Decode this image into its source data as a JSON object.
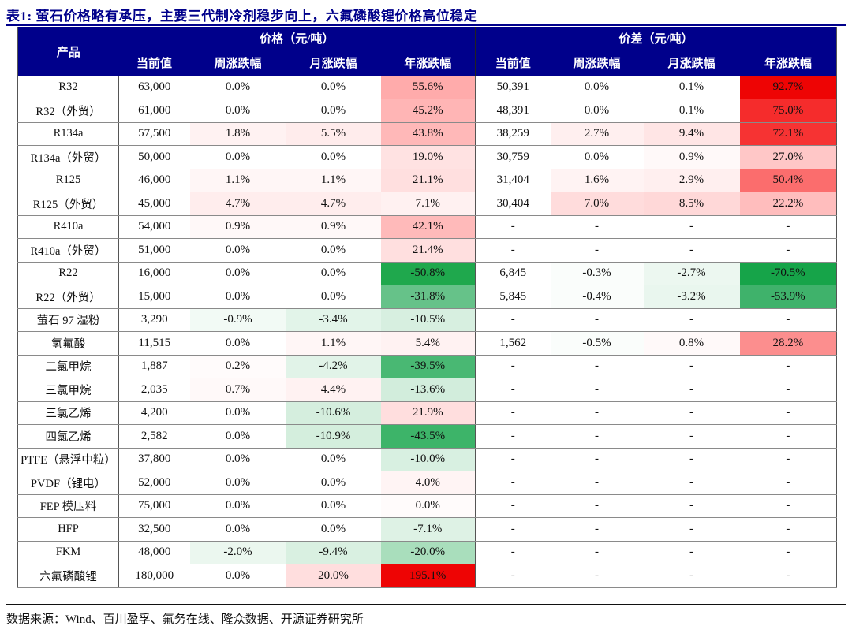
{
  "title": "表1:  萤石价格略有承压，主要三代制冷剂稳步向上，六氟磷酸锂价格高位稳定",
  "source": "数据来源：Wind、百川盈孚、氟务在线、隆众数据、开源证券研究所",
  "colors": {
    "header_bg": "#00008B",
    "title_color": "#00008B",
    "max_positive_red": "#EE0404",
    "max_negative_green": "#1FA84D"
  },
  "table": {
    "product_header": "产品",
    "groups": [
      {
        "label": "价格（元/吨）"
      },
      {
        "label": "价差（元/吨）"
      }
    ],
    "sub_headers": [
      "当前值",
      "周涨跌幅",
      "月涨跌幅",
      "年涨跌幅"
    ],
    "rows": [
      {
        "product": "R32",
        "price": [
          {
            "v": "63,000"
          },
          {
            "v": "0.0%"
          },
          {
            "v": "0.0%"
          },
          {
            "v": "55.6%",
            "bg": "#FFABAB"
          }
        ],
        "spread": [
          {
            "v": "50,391"
          },
          {
            "v": "0.0%"
          },
          {
            "v": "0.1%"
          },
          {
            "v": "92.7%",
            "bg": "#EE0404"
          }
        ]
      },
      {
        "product": "R32（外贸）",
        "price": [
          {
            "v": "61,000"
          },
          {
            "v": "0.0%"
          },
          {
            "v": "0.0%"
          },
          {
            "v": "45.2%",
            "bg": "#FFB5B5"
          }
        ],
        "spread": [
          {
            "v": "48,391"
          },
          {
            "v": "0.0%"
          },
          {
            "v": "0.1%"
          },
          {
            "v": "75.0%",
            "bg": "#F52C2C"
          }
        ]
      },
      {
        "product": "R134a",
        "price": [
          {
            "v": "57,500"
          },
          {
            "v": "1.8%",
            "bg": "#FFF2F2"
          },
          {
            "v": "5.5%",
            "bg": "#FFECEC"
          },
          {
            "v": "43.8%",
            "bg": "#FFB8B8"
          }
        ],
        "spread": [
          {
            "v": "38,259"
          },
          {
            "v": "2.7%",
            "bg": "#FFEFEF"
          },
          {
            "v": "9.4%",
            "bg": "#FFE5E5"
          },
          {
            "v": "72.1%",
            "bg": "#F63333"
          }
        ]
      },
      {
        "product": "R134a（外贸）",
        "price": [
          {
            "v": "50,000"
          },
          {
            "v": "0.0%"
          },
          {
            "v": "0.0%"
          },
          {
            "v": "19.0%",
            "bg": "#FFE2E2"
          }
        ],
        "spread": [
          {
            "v": "30,759"
          },
          {
            "v": "0.0%"
          },
          {
            "v": "0.9%",
            "bg": "#FFF9F9"
          },
          {
            "v": "27.0%",
            "bg": "#FFC7C7"
          }
        ]
      },
      {
        "product": "R125",
        "price": [
          {
            "v": "46,000"
          },
          {
            "v": "1.1%",
            "bg": "#FFF6F6"
          },
          {
            "v": "1.1%",
            "bg": "#FFF6F6"
          },
          {
            "v": "21.1%",
            "bg": "#FFDFDF"
          }
        ],
        "spread": [
          {
            "v": "31,404"
          },
          {
            "v": "1.6%",
            "bg": "#FFF3F3"
          },
          {
            "v": "2.9%",
            "bg": "#FFEFEF"
          },
          {
            "v": "50.4%",
            "bg": "#FB6D6D"
          }
        ]
      },
      {
        "product": "R125（外贸）",
        "price": [
          {
            "v": "45,000"
          },
          {
            "v": "4.7%",
            "bg": "#FFEDED"
          },
          {
            "v": "4.7%",
            "bg": "#FFEDED"
          },
          {
            "v": "7.1%",
            "bg": "#FFF1F1"
          }
        ],
        "spread": [
          {
            "v": "30,404"
          },
          {
            "v": "7.0%",
            "bg": "#FFDCDC"
          },
          {
            "v": "8.5%",
            "bg": "#FFD8D8"
          },
          {
            "v": "22.2%",
            "bg": "#FFBDBD"
          }
        ]
      },
      {
        "product": "R410a",
        "price": [
          {
            "v": "54,000"
          },
          {
            "v": "0.9%",
            "bg": "#FFF8F8"
          },
          {
            "v": "0.9%",
            "bg": "#FFF8F8"
          },
          {
            "v": "42.1%",
            "bg": "#FFBABA"
          }
        ],
        "spread": [
          {
            "v": "-"
          },
          {
            "v": "-"
          },
          {
            "v": "-"
          },
          {
            "v": "-"
          }
        ]
      },
      {
        "product": "R410a（外贸）",
        "price": [
          {
            "v": "51,000"
          },
          {
            "v": "0.0%"
          },
          {
            "v": "0.0%"
          },
          {
            "v": "21.4%",
            "bg": "#FFDFDF"
          }
        ],
        "spread": [
          {
            "v": "-"
          },
          {
            "v": "-"
          },
          {
            "v": "-"
          },
          {
            "v": "-"
          }
        ]
      },
      {
        "product": "R22",
        "price": [
          {
            "v": "16,000"
          },
          {
            "v": "0.0%"
          },
          {
            "v": "0.0%"
          },
          {
            "v": "-50.8%",
            "bg": "#1FA84D"
          }
        ],
        "spread": [
          {
            "v": "6,845"
          },
          {
            "v": "-0.3%",
            "bg": "#FAFDFB"
          },
          {
            "v": "-2.7%",
            "bg": "#ECF7F0"
          },
          {
            "v": "-70.5%",
            "bg": "#16A449"
          }
        ]
      },
      {
        "product": "R22（外贸）",
        "price": [
          {
            "v": "15,000"
          },
          {
            "v": "0.0%"
          },
          {
            "v": "0.0%"
          },
          {
            "v": "-31.8%",
            "bg": "#66C289"
          }
        ],
        "spread": [
          {
            "v": "5,845"
          },
          {
            "v": "-0.4%",
            "bg": "#FAFDFB"
          },
          {
            "v": "-3.2%",
            "bg": "#E9F6EE"
          },
          {
            "v": "-53.9%",
            "bg": "#3FB26B"
          }
        ]
      },
      {
        "product": "萤石 97 湿粉",
        "price": [
          {
            "v": "3,290"
          },
          {
            "v": "-0.9%",
            "bg": "#F2FAF5"
          },
          {
            "v": "-3.4%",
            "bg": "#E2F4E9"
          },
          {
            "v": "-10.5%",
            "bg": "#D7EFE0"
          }
        ],
        "spread": [
          {
            "v": "-"
          },
          {
            "v": "-"
          },
          {
            "v": "-"
          },
          {
            "v": "-"
          }
        ]
      },
      {
        "product": "氢氟酸",
        "price": [
          {
            "v": "11,515"
          },
          {
            "v": "0.0%"
          },
          {
            "v": "1.1%",
            "bg": "#FFF6F6"
          },
          {
            "v": "5.4%",
            "bg": "#FFF2F2"
          }
        ],
        "spread": [
          {
            "v": "1,562"
          },
          {
            "v": "-0.5%",
            "bg": "#FAFDFB"
          },
          {
            "v": "0.8%",
            "bg": "#FFF9F9"
          },
          {
            "v": "28.2%",
            "bg": "#FC8E8E"
          }
        ]
      },
      {
        "product": "二氯甲烷",
        "price": [
          {
            "v": "1,887"
          },
          {
            "v": "0.2%",
            "bg": "#FFFBFB"
          },
          {
            "v": "-4.2%",
            "bg": "#E1F3E8"
          },
          {
            "v": "-39.5%",
            "bg": "#49B873"
          }
        ],
        "spread": [
          {
            "v": "-"
          },
          {
            "v": "-"
          },
          {
            "v": "-"
          },
          {
            "v": "-"
          }
        ]
      },
      {
        "product": "三氯甲烷",
        "price": [
          {
            "v": "2,035"
          },
          {
            "v": "0.7%",
            "bg": "#FFF9F9"
          },
          {
            "v": "4.4%",
            "bg": "#FFF2F2"
          },
          {
            "v": "-13.6%",
            "bg": "#D2EDDC"
          }
        ],
        "spread": [
          {
            "v": "-"
          },
          {
            "v": "-"
          },
          {
            "v": "-"
          },
          {
            "v": "-"
          }
        ]
      },
      {
        "product": "三氯乙烯",
        "price": [
          {
            "v": "4,200"
          },
          {
            "v": "0.0%"
          },
          {
            "v": "-10.6%",
            "bg": "#D5EEDE"
          },
          {
            "v": "21.9%",
            "bg": "#FFDEDE"
          }
        ],
        "spread": [
          {
            "v": "-"
          },
          {
            "v": "-"
          },
          {
            "v": "-"
          },
          {
            "v": "-"
          }
        ]
      },
      {
        "product": "四氯乙烯",
        "price": [
          {
            "v": "2,582"
          },
          {
            "v": "0.0%"
          },
          {
            "v": "-10.9%",
            "bg": "#D4EEDD"
          },
          {
            "v": "-43.5%",
            "bg": "#3DB469"
          }
        ],
        "spread": [
          {
            "v": "-"
          },
          {
            "v": "-"
          },
          {
            "v": "-"
          },
          {
            "v": "-"
          }
        ]
      },
      {
        "product": "PTFE（悬浮中粒）",
        "price": [
          {
            "v": "37,800"
          },
          {
            "v": "0.0%"
          },
          {
            "v": "0.0%"
          },
          {
            "v": "-10.0%",
            "bg": "#D8F0E1"
          }
        ],
        "spread": [
          {
            "v": "-"
          },
          {
            "v": "-"
          },
          {
            "v": "-"
          },
          {
            "v": "-"
          }
        ]
      },
      {
        "product": "PVDF（锂电）",
        "price": [
          {
            "v": "52,000"
          },
          {
            "v": "0.0%"
          },
          {
            "v": "0.0%"
          },
          {
            "v": "4.0%",
            "bg": "#FFF4F4"
          }
        ],
        "spread": [
          {
            "v": "-"
          },
          {
            "v": "-"
          },
          {
            "v": "-"
          },
          {
            "v": "-"
          }
        ]
      },
      {
        "product": "FEP 模压料",
        "price": [
          {
            "v": "75,000"
          },
          {
            "v": "0.0%"
          },
          {
            "v": "0.0%"
          },
          {
            "v": "0.0%",
            "bg": "#FFFBFB"
          }
        ],
        "spread": [
          {
            "v": "-"
          },
          {
            "v": "-"
          },
          {
            "v": "-"
          },
          {
            "v": "-"
          }
        ]
      },
      {
        "product": "HFP",
        "price": [
          {
            "v": "32,500"
          },
          {
            "v": "0.0%"
          },
          {
            "v": "0.0%"
          },
          {
            "v": "-7.1%",
            "bg": "#DEF2E5"
          }
        ],
        "spread": [
          {
            "v": "-"
          },
          {
            "v": "-"
          },
          {
            "v": "-"
          },
          {
            "v": "-"
          }
        ]
      },
      {
        "product": "FKM",
        "price": [
          {
            "v": "48,000"
          },
          {
            "v": "-2.0%",
            "bg": "#EBF7EF"
          },
          {
            "v": "-9.4%",
            "bg": "#D9F0E1"
          },
          {
            "v": "-20.0%",
            "bg": "#A9DEBC"
          }
        ],
        "spread": [
          {
            "v": "-"
          },
          {
            "v": "-"
          },
          {
            "v": "-"
          },
          {
            "v": "-"
          }
        ]
      },
      {
        "product": "六氟磷酸锂",
        "price": [
          {
            "v": "180,000"
          },
          {
            "v": "0.0%"
          },
          {
            "v": "20.0%",
            "bg": "#FFDEDE"
          },
          {
            "v": "195.1%",
            "bg": "#EE0404"
          }
        ],
        "spread": [
          {
            "v": "-"
          },
          {
            "v": "-"
          },
          {
            "v": "-"
          },
          {
            "v": "-"
          }
        ]
      }
    ]
  }
}
